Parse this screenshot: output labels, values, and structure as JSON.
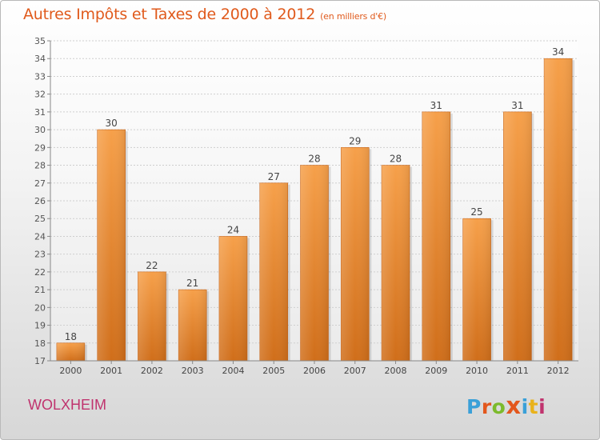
{
  "header": {
    "title": "Autres Impôts et Taxes de 2000 à 2012",
    "unit": "(en milliers d'€)"
  },
  "footer": {
    "commune": "WOLXHEIM",
    "logo_text": "Proxiti",
    "logo_colors": [
      "#3aa0d8",
      "#e3571d",
      "#7cba2c",
      "#e3571d",
      "#3aa0d8",
      "#e9b21b",
      "#c0336e"
    ]
  },
  "chart_data": {
    "type": "bar",
    "categories": [
      "2000",
      "2001",
      "2002",
      "2003",
      "2004",
      "2005",
      "2006",
      "2007",
      "2008",
      "2009",
      "2010",
      "2011",
      "2012"
    ],
    "values": [
      18,
      30,
      22,
      21,
      24,
      27,
      28,
      29,
      28,
      31,
      25,
      31,
      34
    ],
    "ylim": [
      17,
      35
    ],
    "yticks": [
      17,
      18,
      19,
      20,
      21,
      22,
      23,
      24,
      25,
      26,
      27,
      28,
      29,
      30,
      31,
      32,
      33,
      34,
      35
    ],
    "grid": true,
    "bar_color": "#f0923c",
    "bar_color_dark": "#d06e1a",
    "data_labels": true
  }
}
